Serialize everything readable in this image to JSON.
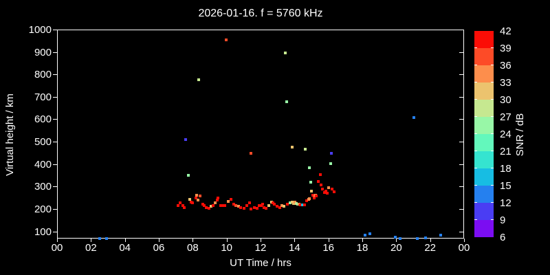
{
  "window": {
    "background": "#000000",
    "accent": "#ffffff"
  },
  "title": "2026-01-16. f = 5760 kHz",
  "chart_data": {
    "type": "scatter",
    "title": "2026-01-16. f = 5760 kHz",
    "xlabel": "UT Time / hrs",
    "ylabel": "Virtual height / km",
    "xlim": [
      0,
      24
    ],
    "ylim": [
      68,
      1000
    ],
    "grid": false,
    "x_ticks": [
      {
        "value": 0,
        "label": "00"
      },
      {
        "value": 2,
        "label": "02"
      },
      {
        "value": 4,
        "label": "04"
      },
      {
        "value": 6,
        "label": "06"
      },
      {
        "value": 8,
        "label": "08"
      },
      {
        "value": 10,
        "label": "10"
      },
      {
        "value": 12,
        "label": "12"
      },
      {
        "value": 14,
        "label": "14"
      },
      {
        "value": 16,
        "label": "16"
      },
      {
        "value": 18,
        "label": "18"
      },
      {
        "value": 20,
        "label": "20"
      },
      {
        "value": 22,
        "label": "22"
      },
      {
        "value": 24,
        "label": "00"
      }
    ],
    "y_ticks": [
      100,
      200,
      300,
      400,
      500,
      600,
      700,
      800,
      900,
      1000
    ],
    "colorbar": {
      "label": "SNR / dB",
      "min": 6,
      "max": 42,
      "step": 3,
      "tick_labels": [
        "42",
        "39",
        "36",
        "33",
        "30",
        "27",
        "24",
        "21",
        "18",
        "15",
        "12",
        "9",
        "6"
      ],
      "colors_low_to_high": [
        "#7b0df2",
        "#4a3df3",
        "#2580ef",
        "#17bde3",
        "#35e4d0",
        "#63f8bc",
        "#98f7a7",
        "#c6e890",
        "#ecc36e",
        "#fd8e4c",
        "#fd4b27",
        "#fb0d06"
      ]
    },
    "points_format": [
      "time_hr",
      "virtual_height_km",
      "snr_db"
    ],
    "points": [
      [
        2.51,
        69,
        14
      ],
      [
        2.92,
        69,
        14
      ],
      [
        7.14,
        214,
        41
      ],
      [
        7.26,
        226,
        41
      ],
      [
        7.42,
        214,
        41
      ],
      [
        7.5,
        207,
        41
      ],
      [
        7.58,
        508,
        11
      ],
      [
        7.74,
        349,
        26
      ],
      [
        7.82,
        244,
        32
      ],
      [
        7.91,
        232,
        41
      ],
      [
        7.99,
        226,
        41
      ],
      [
        8.19,
        250,
        41
      ],
      [
        8.23,
        260,
        35
      ],
      [
        8.31,
        241,
        35
      ],
      [
        8.35,
        776,
        29
      ],
      [
        8.43,
        257,
        38
      ],
      [
        8.6,
        220,
        41
      ],
      [
        8.68,
        214,
        41
      ],
      [
        8.8,
        207,
        41
      ],
      [
        8.96,
        204,
        41
      ],
      [
        9.08,
        211,
        32
      ],
      [
        9.2,
        214,
        41
      ],
      [
        9.32,
        226,
        35
      ],
      [
        9.45,
        241,
        41
      ],
      [
        9.49,
        250,
        41
      ],
      [
        9.65,
        214,
        41
      ],
      [
        9.77,
        214,
        41
      ],
      [
        9.89,
        214,
        41
      ],
      [
        9.97,
        954,
        38
      ],
      [
        10.1,
        235,
        35
      ],
      [
        10.26,
        244,
        41
      ],
      [
        10.42,
        220,
        41
      ],
      [
        10.54,
        214,
        38
      ],
      [
        10.7,
        211,
        35
      ],
      [
        10.82,
        207,
        41
      ],
      [
        11.03,
        204,
        41
      ],
      [
        11.19,
        214,
        41
      ],
      [
        11.35,
        226,
        41
      ],
      [
        11.43,
        201,
        41
      ],
      [
        11.43,
        447,
        38
      ],
      [
        11.63,
        207,
        41
      ],
      [
        11.8,
        204,
        41
      ],
      [
        11.92,
        214,
        41
      ],
      [
        12.04,
        214,
        41
      ],
      [
        12.12,
        220,
        41
      ],
      [
        12.2,
        207,
        41
      ],
      [
        12.32,
        204,
        41
      ],
      [
        12.49,
        214,
        32
      ],
      [
        12.65,
        232,
        32
      ],
      [
        12.73,
        226,
        41
      ],
      [
        12.81,
        220,
        41
      ],
      [
        12.97,
        211,
        41
      ],
      [
        13.14,
        207,
        41
      ],
      [
        13.26,
        214,
        35
      ],
      [
        13.38,
        211,
        32
      ],
      [
        13.46,
        896,
        29
      ],
      [
        13.54,
        678,
        26
      ],
      [
        13.58,
        220,
        41
      ],
      [
        13.74,
        226,
        26
      ],
      [
        13.86,
        232,
        32
      ],
      [
        13.86,
        475,
        32
      ],
      [
        13.95,
        223,
        32
      ],
      [
        14.03,
        229,
        35
      ],
      [
        14.11,
        223,
        29
      ],
      [
        14.19,
        220,
        26
      ],
      [
        14.27,
        220,
        35
      ],
      [
        14.35,
        217,
        41
      ],
      [
        14.47,
        217,
        17
      ],
      [
        14.6,
        217,
        41
      ],
      [
        14.64,
        466,
        29
      ],
      [
        14.72,
        238,
        41
      ],
      [
        14.84,
        244,
        35
      ],
      [
        14.88,
        247,
        35
      ],
      [
        14.88,
        383,
        26
      ],
      [
        14.96,
        318,
        26
      ],
      [
        15.0,
        281,
        32
      ],
      [
        15.08,
        260,
        41
      ],
      [
        15.16,
        250,
        41
      ],
      [
        15.16,
        257,
        38
      ],
      [
        15.24,
        260,
        35
      ],
      [
        15.28,
        257,
        41
      ],
      [
        15.41,
        321,
        41
      ],
      [
        15.53,
        352,
        41
      ],
      [
        15.57,
        306,
        41
      ],
      [
        15.65,
        290,
        41
      ],
      [
        15.77,
        272,
        41
      ],
      [
        15.85,
        281,
        41
      ],
      [
        15.93,
        269,
        41
      ],
      [
        16.01,
        294,
        35
      ],
      [
        16.14,
        401,
        26
      ],
      [
        16.18,
        447,
        11
      ],
      [
        16.22,
        290,
        41
      ],
      [
        16.34,
        278,
        41
      ],
      [
        18.16,
        82,
        14
      ],
      [
        18.45,
        88,
        14
      ],
      [
        19.95,
        75,
        14
      ],
      [
        20.23,
        69,
        14
      ],
      [
        21.04,
        607,
        14
      ],
      [
        21.25,
        69,
        14
      ],
      [
        21.73,
        72,
        14
      ],
      [
        22.62,
        82,
        14
      ]
    ]
  }
}
